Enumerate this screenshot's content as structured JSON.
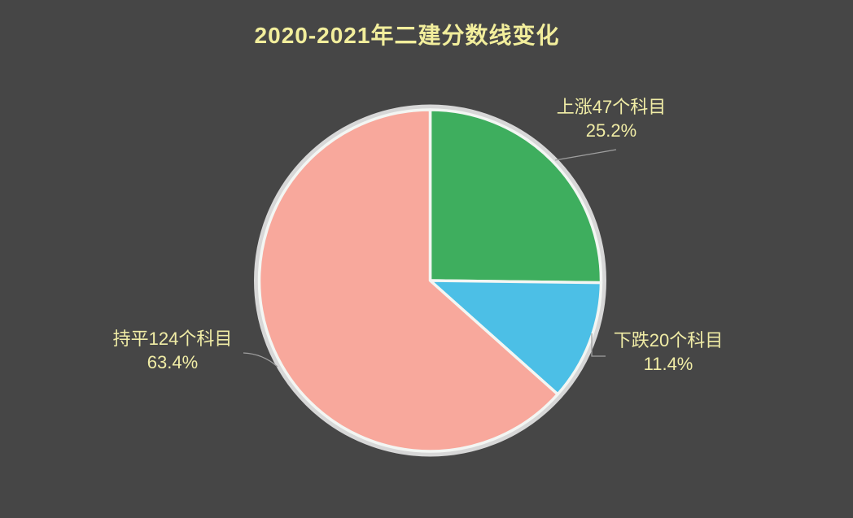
{
  "background_color": "#464646",
  "title": {
    "text": "2020-2021年二建分数线变化",
    "color": "#f2ee9c"
  },
  "chart_data": {
    "type": "pie",
    "title": "2020-2021年二建分数线变化",
    "start_angle_deg": 0,
    "direction": "clockwise",
    "slices": [
      {
        "label": "上涨47个科目",
        "category": "上涨",
        "subjects": 47,
        "value": 25.2,
        "pct_label": "25.2%",
        "color": "#3eae5e"
      },
      {
        "label": "下跌20个科目",
        "category": "下跌",
        "subjects": 20,
        "value": 11.4,
        "pct_label": "11.4%",
        "color": "#4cbfe6"
      },
      {
        "label": "持平124个科目",
        "category": "持平",
        "subjects": 124,
        "value": 63.4,
        "pct_label": "63.4%",
        "color": "#f8a89c"
      }
    ],
    "label_color": "#f1eda6",
    "ring_color": "#d7d7d7",
    "separator_color": "#f3f6f3",
    "leader_line_color": "#9f9f9f",
    "legend": "none"
  }
}
